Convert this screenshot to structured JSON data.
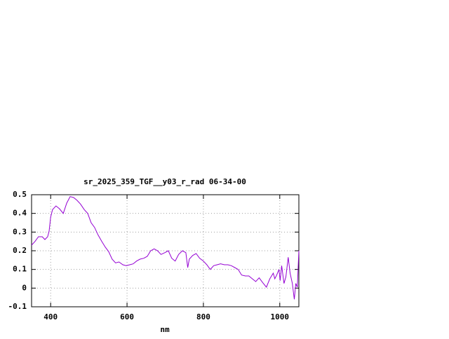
{
  "chart_data": {
    "type": "line",
    "title": "sr_2025_359_TGF__y03_r_rad 06-34-00",
    "x_label": "nm",
    "xlim": [
      350,
      1050
    ],
    "xticks": [
      400,
      600,
      800,
      1000
    ],
    "ylim": [
      -0.1,
      0.5
    ],
    "yticks": [
      0.5,
      0.4,
      0.3,
      0.2,
      0.1,
      0,
      -0.1
    ],
    "grid": true,
    "series": [
      {
        "color": "#9400d3",
        "x": [
          350,
          359,
          368,
          378,
          385,
          392,
          396,
          400,
          405,
          414,
          423,
          433,
          442,
          451,
          460,
          469,
          478,
          488,
          497,
          506,
          515,
          524,
          534,
          543,
          552,
          561,
          570,
          579,
          589,
          598,
          607,
          616,
          625,
          634,
          644,
          653,
          662,
          671,
          680,
          689,
          699,
          708,
          717,
          726,
          735,
          745,
          754,
          759,
          763,
          772,
          781,
          790,
          800,
          809,
          818,
          827,
          836,
          845,
          855,
          864,
          873,
          882,
          891,
          900,
          910,
          919,
          928,
          937,
          946,
          955,
          965,
          974,
          983,
          987,
          992,
          998,
          1001,
          1005,
          1011,
          1016,
          1022,
          1027,
          1033,
          1038,
          1042,
          1046,
          1050
        ],
        "values": [
          0.23,
          0.25,
          0.275,
          0.275,
          0.26,
          0.275,
          0.305,
          0.38,
          0.42,
          0.44,
          0.425,
          0.4,
          0.455,
          0.49,
          0.485,
          0.47,
          0.45,
          0.42,
          0.4,
          0.35,
          0.325,
          0.285,
          0.25,
          0.22,
          0.195,
          0.155,
          0.135,
          0.14,
          0.125,
          0.12,
          0.125,
          0.13,
          0.145,
          0.155,
          0.16,
          0.17,
          0.2,
          0.21,
          0.2,
          0.18,
          0.19,
          0.2,
          0.16,
          0.145,
          0.18,
          0.2,
          0.19,
          0.11,
          0.155,
          0.175,
          0.185,
          0.16,
          0.145,
          0.125,
          0.1,
          0.12,
          0.125,
          0.13,
          0.125,
          0.125,
          0.12,
          0.11,
          0.1,
          0.07,
          0.065,
          0.065,
          0.05,
          0.035,
          0.055,
          0.03,
          0.005,
          0.05,
          0.08,
          0.05,
          0.07,
          0.1,
          0.04,
          0.12,
          0.025,
          0.06,
          0.165,
          0.08,
          0.025,
          -0.06,
          0.025,
          0.005,
          0.2
        ]
      }
    ]
  }
}
